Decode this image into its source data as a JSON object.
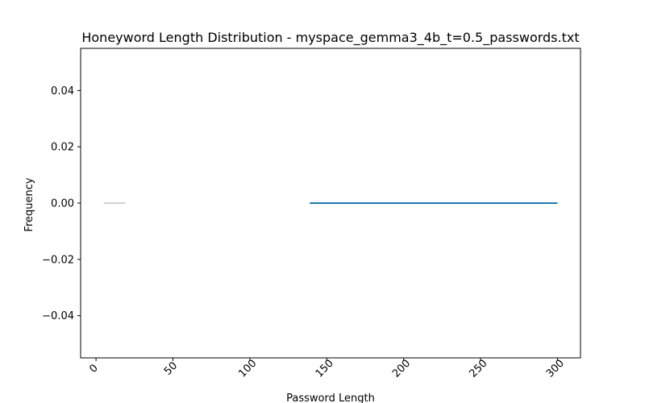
{
  "chart_data": {
    "type": "line",
    "title": "Honeyword Length Distribution - myspace_gemma3_4b_t=0.5_passwords.txt",
    "xlabel": "Password Length",
    "ylabel": "Frequency",
    "xlim": [
      -10,
      315
    ],
    "ylim": [
      -0.055,
      0.055
    ],
    "x_ticks": [
      0,
      50,
      100,
      150,
      200,
      250,
      300
    ],
    "x_tick_labels": [
      "0",
      "50",
      "100",
      "150",
      "200",
      "250",
      "300"
    ],
    "y_ticks": [
      0.04,
      0.02,
      0.0,
      -0.02,
      -0.04
    ],
    "y_tick_labels": [
      "0.04",
      "0.02",
      "0.00",
      "−0.02",
      "−0.04"
    ],
    "grid": false,
    "series": [
      {
        "x": [
          5,
          19
        ],
        "y": [
          0,
          0
        ],
        "color": "#d0d0d0"
      },
      {
        "x": [
          139,
          300
        ],
        "y": [
          0,
          0
        ],
        "color": "#1f77b4"
      }
    ]
  }
}
